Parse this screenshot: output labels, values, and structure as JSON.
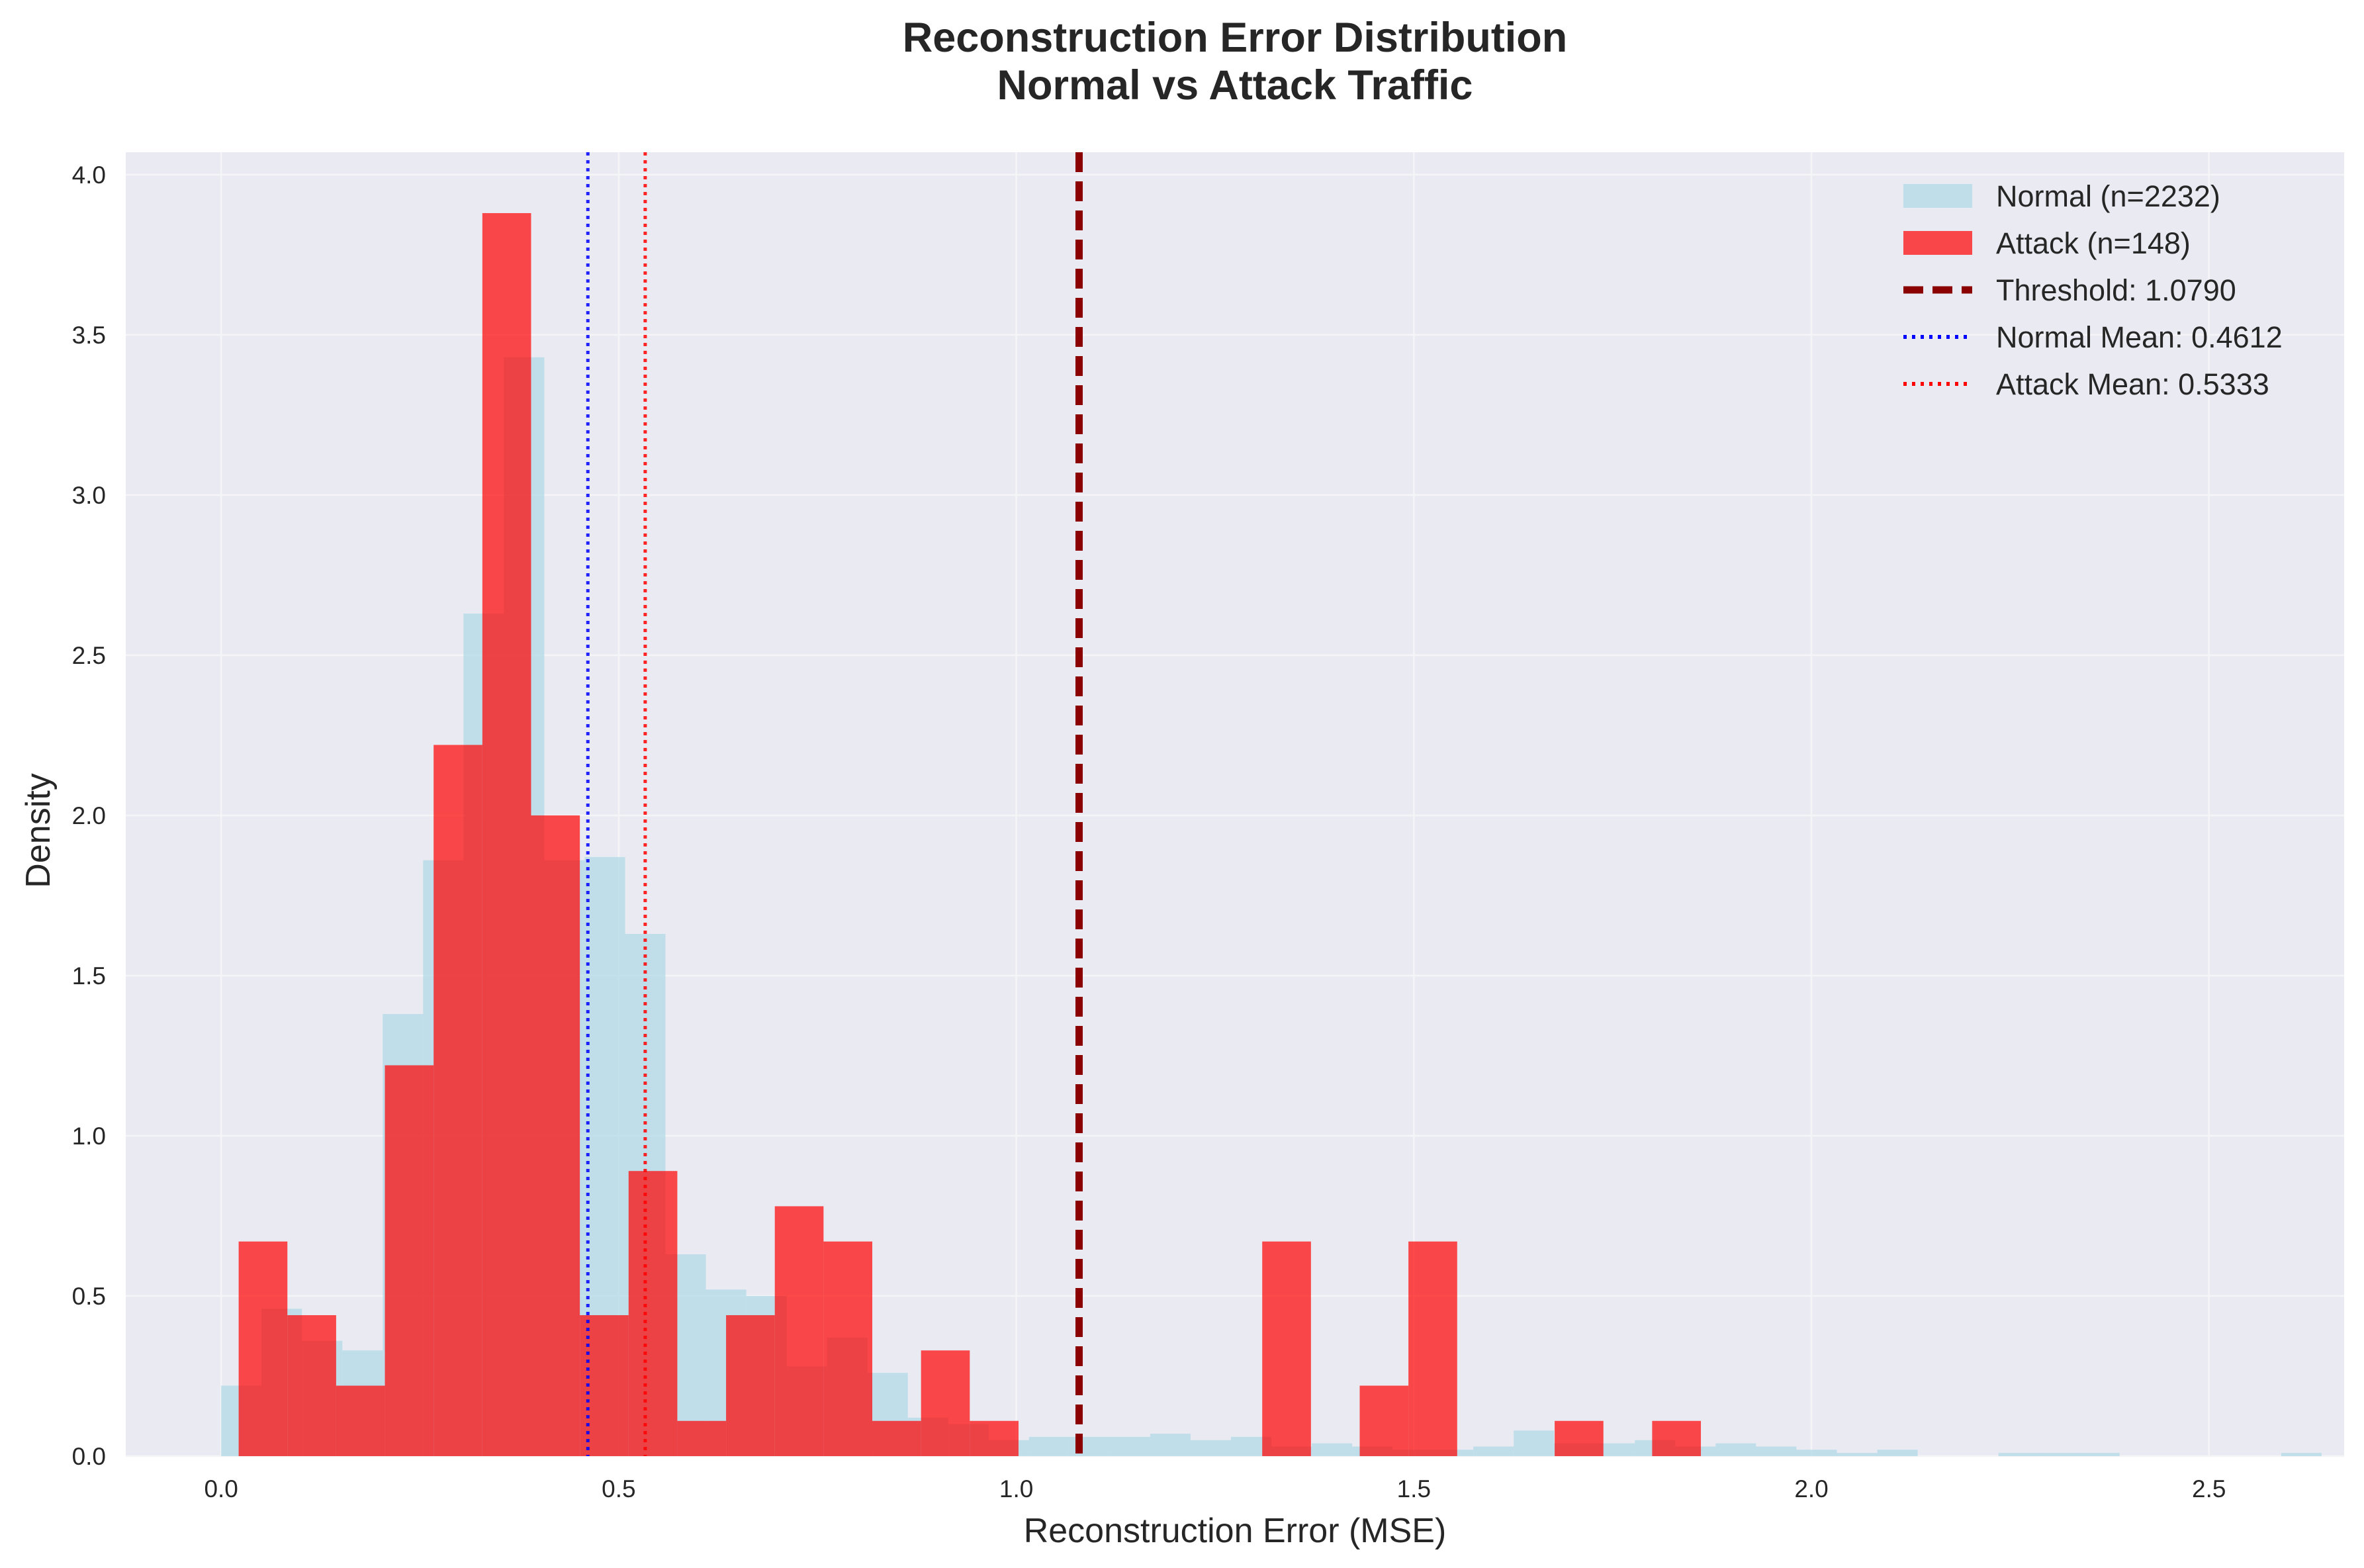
{
  "chart_data": {
    "type": "histogram",
    "title_line1": "Reconstruction Error Distribution",
    "title_line2": "Normal vs Attack Traffic",
    "xlabel": "Reconstruction Error (MSE)",
    "ylabel": "Density",
    "xlim": [
      -0.12,
      2.67
    ],
    "ylim": [
      0,
      4.07
    ],
    "xticks": [
      0.0,
      0.5,
      1.0,
      1.5,
      2.0,
      2.5
    ],
    "xtick_labels": [
      "0.0",
      "0.5",
      "1.0",
      "1.5",
      "2.0",
      "2.5"
    ],
    "yticks": [
      0.0,
      0.5,
      1.0,
      1.5,
      2.0,
      2.5,
      3.0,
      3.5,
      4.0
    ],
    "ytick_labels": [
      "0.0",
      "0.5",
      "1.0",
      "1.5",
      "2.0",
      "2.5",
      "3.0",
      "3.5",
      "4.0"
    ],
    "grid": true,
    "legend_position": "top-right",
    "series": [
      {
        "name": "Normal (n=2232)",
        "kind": "histogram",
        "color": "#add8e6",
        "opacity": 0.7,
        "bin_start": 0.0,
        "bin_width": 0.0508,
        "values": [
          0.22,
          0.46,
          0.36,
          0.33,
          1.38,
          1.86,
          2.63,
          3.43,
          1.86,
          1.87,
          1.63,
          0.63,
          0.52,
          0.5,
          0.28,
          0.37,
          0.26,
          0.12,
          0.1,
          0.05,
          0.06,
          0.06,
          0.06,
          0.07,
          0.05,
          0.06,
          0.03,
          0.04,
          0.03,
          0.02,
          0.02,
          0.03,
          0.08,
          0.04,
          0.04,
          0.05,
          0.03,
          0.04,
          0.03,
          0.02,
          0.01,
          0.02,
          0.0,
          0.0,
          0.01,
          0.01,
          0.01,
          0.0,
          0.0,
          0.0,
          0.0,
          0.01,
          0.0,
          0.0
        ]
      },
      {
        "name": "Attack (n=148)",
        "kind": "histogram",
        "color": "#ff0000",
        "opacity": 0.7,
        "bin_start": 0.022,
        "bin_width": 0.0613,
        "values": [
          0.67,
          0.44,
          0.22,
          1.22,
          2.22,
          3.88,
          2.0,
          0.44,
          0.89,
          0.11,
          0.44,
          0.78,
          0.67,
          0.11,
          0.33,
          0.11,
          0.0,
          0.0,
          0.0,
          0.0,
          0.0,
          0.67,
          0.0,
          0.22,
          0.67,
          0.0,
          0.0,
          0.11,
          0.0,
          0.11
        ]
      }
    ],
    "reference_lines": [
      {
        "name": "Threshold: 1.0790",
        "x": 1.079,
        "color": "#8b0000",
        "style": "dashed"
      },
      {
        "name": "Normal Mean: 0.4612",
        "x": 0.4612,
        "color": "#0000ff",
        "style": "dotted"
      },
      {
        "name": "Attack Mean: 0.5333",
        "x": 0.5333,
        "color": "#ff0000",
        "style": "dotted"
      }
    ],
    "colors": {
      "plot_background": "#eaeaf2",
      "grid": "#f5f5f8",
      "normal": "#add8e6",
      "attack": "#ff0000",
      "threshold": "#8b0000",
      "normal_mean": "#0000ff",
      "attack_mean": "#ff0000"
    },
    "bin_bottom": 0.0
  }
}
